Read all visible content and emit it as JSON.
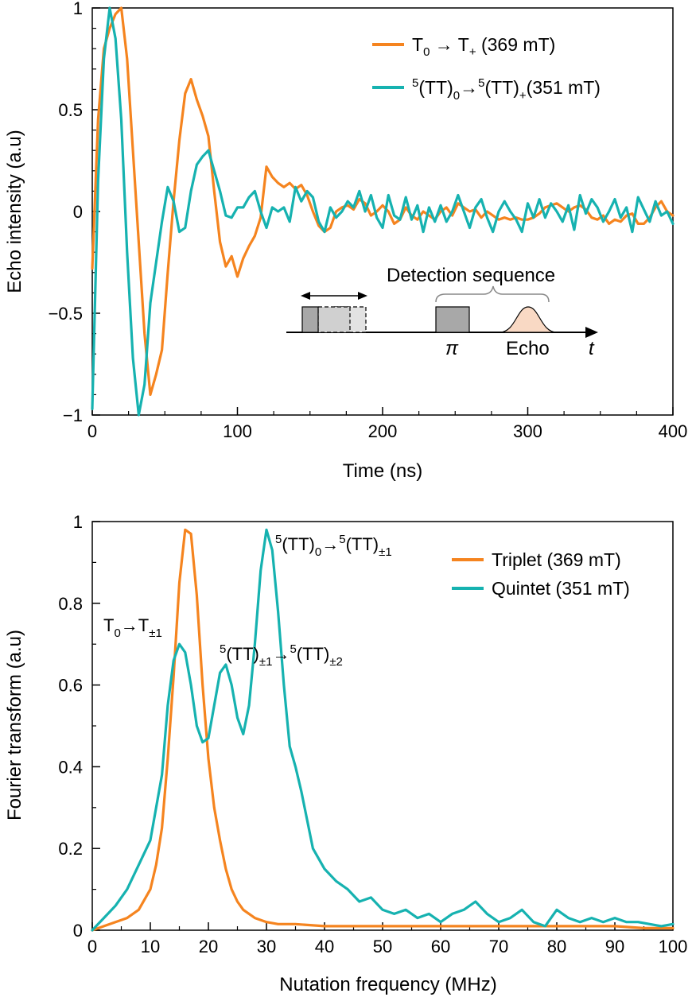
{
  "colors": {
    "orange": "#F5841F",
    "teal": "#16B2B0",
    "axis": "#000000",
    "pulse_fill": "#A8A8A8",
    "pulse_ghost": "#E2E2E2",
    "echo_fill": "#F9D9C4"
  },
  "chart_data": [
    {
      "type": "line",
      "title": "",
      "xlabel": "Time (ns)",
      "ylabel": "Echo intensity (a.u)",
      "xlim": [
        0,
        400
      ],
      "ylim": [
        -1,
        1
      ],
      "xticks": [
        "0",
        "100",
        "200",
        "300",
        "400"
      ],
      "yticks": [
        "−1",
        "−0.5",
        "0",
        "0.5",
        "1"
      ],
      "legend": [
        {
          "label": "T",
          "sub": "0",
          "arrow": " → T",
          "sub2": "+",
          "tail": " (369 mT)"
        },
        {
          "sup": "5",
          "label": "(TT)",
          "sub": "0",
          "arrow": "→",
          "sup2": "5",
          "label2": "(TT)",
          "sub2": "+",
          "tail": "(351 mT)"
        }
      ],
      "inset": {
        "title": "Detection sequence",
        "pi_label": "π",
        "echo_label": "Echo",
        "axis_label": "t"
      },
      "series": [
        {
          "name": "T0 → T+ (369 mT)",
          "color": "#F5841F",
          "x": [
            0,
            4,
            8,
            12,
            16,
            20,
            24,
            28,
            32,
            36,
            40,
            44,
            48,
            52,
            56,
            60,
            64,
            68,
            72,
            76,
            80,
            84,
            88,
            92,
            96,
            100,
            104,
            108,
            112,
            116,
            120,
            124,
            128,
            132,
            136,
            140,
            144,
            148,
            152,
            156,
            160,
            164,
            168,
            172,
            176,
            180,
            184,
            188,
            192,
            196,
            200,
            204,
            208,
            212,
            216,
            220,
            224,
            228,
            232,
            236,
            240,
            244,
            248,
            252,
            256,
            260,
            264,
            268,
            272,
            276,
            280,
            284,
            288,
            292,
            296,
            300,
            304,
            308,
            312,
            316,
            320,
            324,
            328,
            332,
            336,
            340,
            344,
            348,
            352,
            356,
            360,
            364,
            368,
            372,
            376,
            380,
            384,
            388,
            392,
            396,
            400
          ],
          "values": [
            -0.28,
            0.45,
            0.8,
            0.9,
            0.97,
            1.0,
            0.75,
            0.3,
            -0.15,
            -0.6,
            -0.9,
            -0.8,
            -0.68,
            -0.3,
            0.05,
            0.35,
            0.58,
            0.65,
            0.55,
            0.47,
            0.37,
            0.1,
            -0.15,
            -0.27,
            -0.22,
            -0.32,
            -0.23,
            -0.17,
            -0.12,
            -0.03,
            0.22,
            0.17,
            0.14,
            0.12,
            0.14,
            0.11,
            0.13,
            0.08,
            0.0,
            -0.07,
            -0.1,
            -0.08,
            0.0,
            0.02,
            0.03,
            0.01,
            0.06,
            0.04,
            -0.02,
            0.0,
            0.03,
            0.0,
            -0.06,
            -0.04,
            0.02,
            -0.02,
            -0.04,
            0.0,
            -0.02,
            -0.04,
            0.0,
            0.02,
            -0.02,
            0.04,
            0.02,
            0.0,
            0.01,
            -0.03,
            0.0,
            -0.02,
            -0.04,
            -0.03,
            -0.04,
            -0.03,
            -0.04,
            -0.04,
            -0.03,
            -0.01,
            0.02,
            0.03,
            0.04,
            0.02,
            0.0,
            0.02,
            0.03,
            0.01,
            -0.03,
            -0.04,
            -0.02,
            -0.06,
            -0.04,
            -0.05,
            -0.02,
            -0.01,
            -0.06,
            -0.06,
            -0.03,
            0.02,
            0.05,
            0.0,
            -0.02
          ]
        },
        {
          "name": "5(TT)0 → 5(TT)+ (351 mT)",
          "color": "#16B2B0",
          "x": [
            0,
            4,
            8,
            12,
            16,
            20,
            24,
            28,
            32,
            36,
            40,
            44,
            48,
            52,
            56,
            60,
            64,
            68,
            72,
            76,
            80,
            84,
            88,
            92,
            96,
            100,
            104,
            108,
            112,
            116,
            120,
            124,
            128,
            132,
            136,
            140,
            144,
            148,
            152,
            156,
            160,
            164,
            168,
            172,
            176,
            180,
            184,
            188,
            192,
            196,
            200,
            204,
            208,
            212,
            216,
            220,
            224,
            228,
            232,
            236,
            240,
            244,
            248,
            252,
            256,
            260,
            264,
            268,
            272,
            276,
            280,
            284,
            288,
            292,
            296,
            300,
            304,
            308,
            312,
            316,
            320,
            324,
            328,
            332,
            336,
            340,
            344,
            348,
            352,
            356,
            360,
            364,
            368,
            372,
            376,
            380,
            384,
            388,
            392,
            396,
            400
          ],
          "values": [
            -0.97,
            0.15,
            0.75,
            1.0,
            0.85,
            0.45,
            -0.2,
            -0.72,
            -1.0,
            -0.85,
            -0.45,
            -0.25,
            -0.05,
            0.12,
            0.05,
            -0.1,
            -0.08,
            0.1,
            0.23,
            0.27,
            0.3,
            0.2,
            0.1,
            -0.02,
            -0.03,
            0.02,
            0.02,
            0.07,
            0.1,
            0.0,
            -0.08,
            0.02,
            0.0,
            0.02,
            -0.05,
            0.12,
            0.05,
            0.1,
            0.07,
            -0.05,
            -0.1,
            0.02,
            -0.03,
            0.0,
            0.05,
            0.02,
            0.1,
            0.0,
            0.08,
            -0.03,
            -0.08,
            0.08,
            -0.02,
            -0.04,
            0.07,
            -0.04,
            0.03,
            -0.1,
            0.02,
            -0.05,
            0.03,
            -0.05,
            0.0,
            0.08,
            0.0,
            -0.08,
            0.02,
            0.06,
            -0.03,
            -0.1,
            0.0,
            0.05,
            0.0,
            -0.04,
            -0.1,
            0.04,
            -0.03,
            0.06,
            -0.03,
            0.04,
            0.0,
            -0.05,
            0.03,
            -0.09,
            0.08,
            -0.01,
            0.06,
            0.02,
            -0.05,
            0.0,
            0.06,
            -0.03,
            0.02,
            -0.1,
            0.07,
            0.01,
            -0.05,
            0.05,
            -0.02,
            0.0,
            -0.06
          ]
        }
      ]
    },
    {
      "type": "line",
      "title": "",
      "xlabel": "Nutation frequency (MHz)",
      "ylabel": "Fourier transform (a.u)",
      "xlim": [
        0,
        100
      ],
      "ylim": [
        0,
        1
      ],
      "xticks": [
        "0",
        "10",
        "20",
        "30",
        "40",
        "50",
        "60",
        "70",
        "80",
        "90",
        "100"
      ],
      "yticks": [
        "0",
        "0.2",
        "0.4",
        "0.6",
        "0.8",
        "1"
      ],
      "legend": [
        {
          "label": "Triplet (369 mT)"
        },
        {
          "label": "Quintet (351 mT)"
        }
      ],
      "annotations": [
        {
          "x": 16,
          "y": 0.76,
          "base": "T",
          "sub": "0",
          "arrow": "→T",
          "sub2": "±1"
        },
        {
          "x": 23,
          "y": 0.66,
          "sup": "5",
          "base": "(TT)",
          "sub": "±1",
          "arrow": "→",
          "sup2": "5",
          "base2": "(TT)",
          "sub2": "±2"
        },
        {
          "x": 32,
          "y": 0.96,
          "sup": "5",
          "base": "(TT)",
          "sub": "0",
          "arrow": "→",
          "sup2": "5",
          "base2": "(TT)",
          "sub2": "±1"
        }
      ],
      "series": [
        {
          "name": "Triplet (369 mT)",
          "color": "#F5841F",
          "x": [
            0,
            2,
            4,
            6,
            8,
            10,
            11,
            12,
            13,
            14,
            15,
            16,
            17,
            18,
            19,
            20,
            21,
            22,
            23,
            24,
            25,
            26,
            28,
            30,
            32,
            35,
            40,
            45,
            50,
            55,
            60,
            65,
            70,
            75,
            80,
            85,
            90,
            95,
            100
          ],
          "values": [
            0,
            0.01,
            0.02,
            0.03,
            0.05,
            0.1,
            0.16,
            0.25,
            0.42,
            0.62,
            0.85,
            0.98,
            0.97,
            0.82,
            0.6,
            0.42,
            0.3,
            0.22,
            0.15,
            0.1,
            0.07,
            0.05,
            0.03,
            0.02,
            0.015,
            0.015,
            0.01,
            0.01,
            0.01,
            0.01,
            0.01,
            0.01,
            0.01,
            0.01,
            0.01,
            0.01,
            0.01,
            0.005,
            0.005
          ]
        },
        {
          "name": "Quintet (351 mT)",
          "color": "#16B2B0",
          "x": [
            0,
            2,
            4,
            6,
            8,
            10,
            12,
            13,
            14,
            15,
            16,
            17,
            18,
            19,
            20,
            21,
            22,
            23,
            24,
            25,
            26,
            27,
            28,
            29,
            30,
            31,
            32,
            33,
            34,
            35,
            36,
            37,
            38,
            40,
            42,
            44,
            46,
            48,
            50,
            52,
            54,
            56,
            58,
            60,
            62,
            64,
            66,
            68,
            70,
            72,
            74,
            76,
            78,
            80,
            82,
            84,
            86,
            88,
            90,
            92,
            94,
            96,
            98,
            100
          ],
          "values": [
            0,
            0.03,
            0.06,
            0.1,
            0.16,
            0.22,
            0.38,
            0.55,
            0.66,
            0.7,
            0.68,
            0.6,
            0.5,
            0.46,
            0.47,
            0.55,
            0.63,
            0.65,
            0.6,
            0.52,
            0.48,
            0.55,
            0.7,
            0.88,
            0.98,
            0.93,
            0.78,
            0.6,
            0.45,
            0.4,
            0.34,
            0.27,
            0.2,
            0.15,
            0.12,
            0.1,
            0.07,
            0.08,
            0.05,
            0.04,
            0.05,
            0.03,
            0.04,
            0.02,
            0.04,
            0.05,
            0.07,
            0.04,
            0.02,
            0.03,
            0.05,
            0.02,
            0.01,
            0.05,
            0.03,
            0.02,
            0.03,
            0.02,
            0.03,
            0.02,
            0.02,
            0.015,
            0.01,
            0.015
          ]
        }
      ]
    }
  ]
}
